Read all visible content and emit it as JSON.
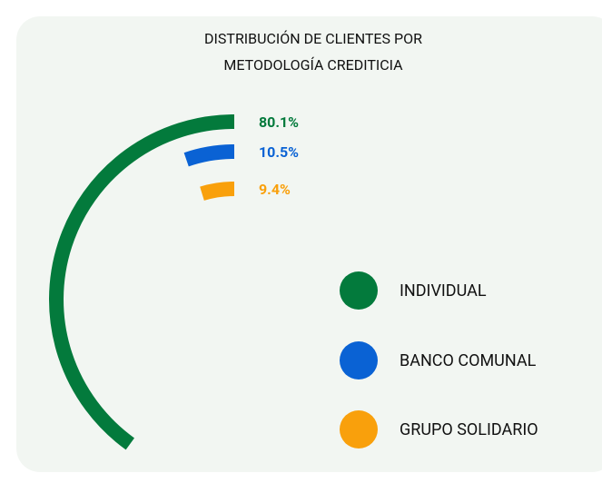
{
  "chart_data": {
    "type": "radial-bar",
    "title": [
      "DISTRIBUCIÓN DE CLIENTES POR",
      "METODOLOGÍA CREDITICIA"
    ],
    "categories": [
      "INDIVIDUAL",
      "BANCO COMUNAL",
      "GRUPO SOLIDARIO"
    ],
    "values": [
      80.1,
      10.5,
      9.4
    ],
    "value_labels": [
      "80.1%",
      "10.5%",
      "9.4%"
    ],
    "colors": [
      "#037a3c",
      "#0a62d4",
      "#f9a00c"
    ],
    "ylim": [
      0,
      100
    ]
  }
}
